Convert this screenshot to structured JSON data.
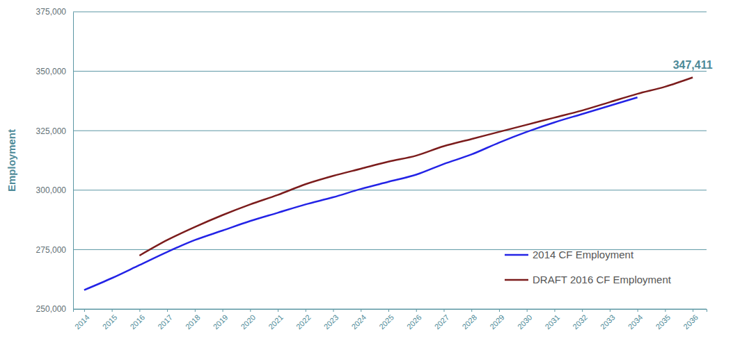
{
  "chart_data": {
    "type": "line",
    "y_label": "Employment",
    "x": [
      2014,
      2015,
      2016,
      2017,
      2018,
      2019,
      2020,
      2021,
      2022,
      2023,
      2024,
      2025,
      2026,
      2027,
      2028,
      2029,
      2030,
      2031,
      2032,
      2033,
      2034,
      2035,
      2036
    ],
    "series": [
      {
        "name": "2014 CF Employment",
        "color": "#2323e6",
        "values": [
          258000,
          263000,
          268500,
          274000,
          279000,
          283000,
          287000,
          290500,
          294000,
          297000,
          300500,
          303500,
          306500,
          311000,
          315000,
          320000,
          324500,
          328500,
          332000,
          335500,
          339000,
          null,
          null
        ]
      },
      {
        "name": "DRAFT 2016 CF Employment",
        "color": "#7b1c1c",
        "values": [
          null,
          null,
          272500,
          279000,
          284500,
          289500,
          294000,
          298000,
          302500,
          306000,
          309000,
          312000,
          314500,
          318500,
          321500,
          324500,
          327500,
          330500,
          333500,
          337000,
          340500,
          343500,
          347411
        ]
      }
    ],
    "xlim": [
      2013.6,
      2036.5
    ],
    "xticks": [
      2014,
      2015,
      2016,
      2017,
      2018,
      2019,
      2020,
      2021,
      2022,
      2023,
      2024,
      2025,
      2026,
      2027,
      2028,
      2029,
      2030,
      2031,
      2032,
      2033,
      2034,
      2035,
      2036
    ],
    "ylim": [
      250000,
      375000
    ],
    "yticks": [
      {
        "value": 250000,
        "label": "250,000"
      },
      {
        "value": 275000,
        "label": "275,000"
      },
      {
        "value": 300000,
        "label": "300,000"
      },
      {
        "value": 325000,
        "label": "325,000"
      },
      {
        "value": 350000,
        "label": "350,000"
      },
      {
        "value": 375000,
        "label": "375,000"
      }
    ],
    "grid": true,
    "legend": "lower right",
    "annotations": [
      {
        "text": "347,411",
        "x": 2036,
        "y": 347411
      }
    ]
  }
}
